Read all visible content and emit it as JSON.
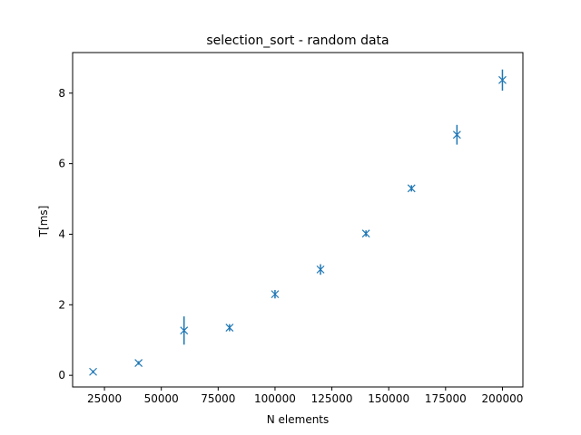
{
  "chart_data": {
    "type": "scatter",
    "title": "selection_sort - random data",
    "xlabel": "N elements",
    "ylabel": "T[ms]",
    "xlim": [
      11000,
      209000
    ],
    "ylim": [
      -0.33,
      9.15
    ],
    "xticks": [
      25000,
      50000,
      75000,
      100000,
      125000,
      150000,
      175000,
      200000
    ],
    "xtick_labels": [
      "25000",
      "50000",
      "75000",
      "100000",
      "125000",
      "150000",
      "175000",
      "200000"
    ],
    "yticks": [
      0,
      2,
      4,
      6,
      8
    ],
    "ytick_labels": [
      "0",
      "2",
      "4",
      "6",
      "8"
    ],
    "grid": false,
    "marker": "x",
    "color": "#1f77b4",
    "series": [
      {
        "x": [
          20000,
          40000,
          60000,
          80000,
          100000,
          120000,
          140000,
          160000,
          180000,
          200000
        ],
        "y": [
          0.1,
          0.35,
          1.27,
          1.35,
          2.3,
          3.0,
          4.02,
          5.3,
          6.82,
          8.37
        ],
        "yerr": [
          0.04,
          0.05,
          0.4,
          0.1,
          0.12,
          0.15,
          0.09,
          0.09,
          0.28,
          0.3
        ]
      }
    ]
  }
}
